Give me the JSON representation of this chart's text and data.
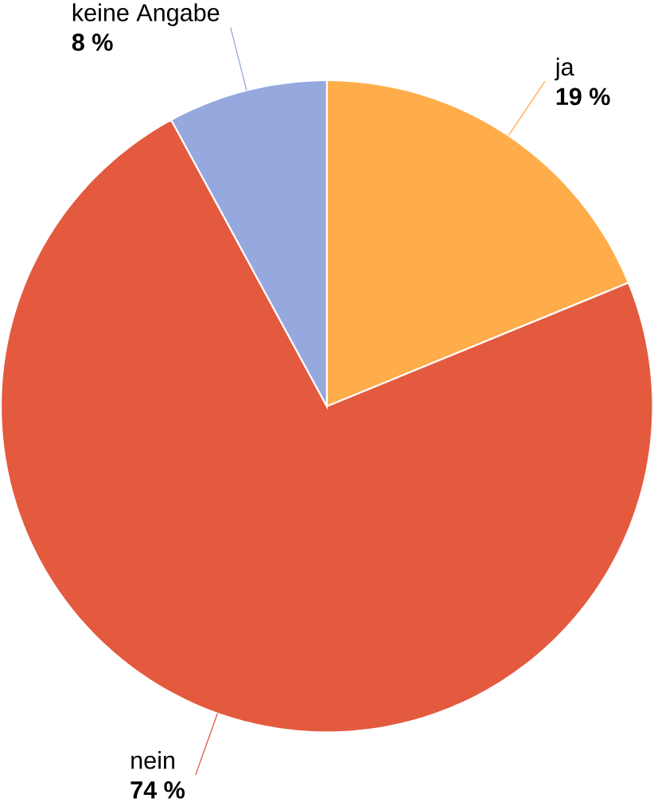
{
  "chart_data": {
    "type": "pie",
    "categories": [
      "ja",
      "nein",
      "keine Angabe"
    ],
    "values": [
      19,
      74,
      8
    ],
    "value_labels": [
      "19 %",
      "74 %",
      "8 %"
    ],
    "colors": [
      "#ffad4a",
      "#e45a3f",
      "#96a9de"
    ]
  }
}
